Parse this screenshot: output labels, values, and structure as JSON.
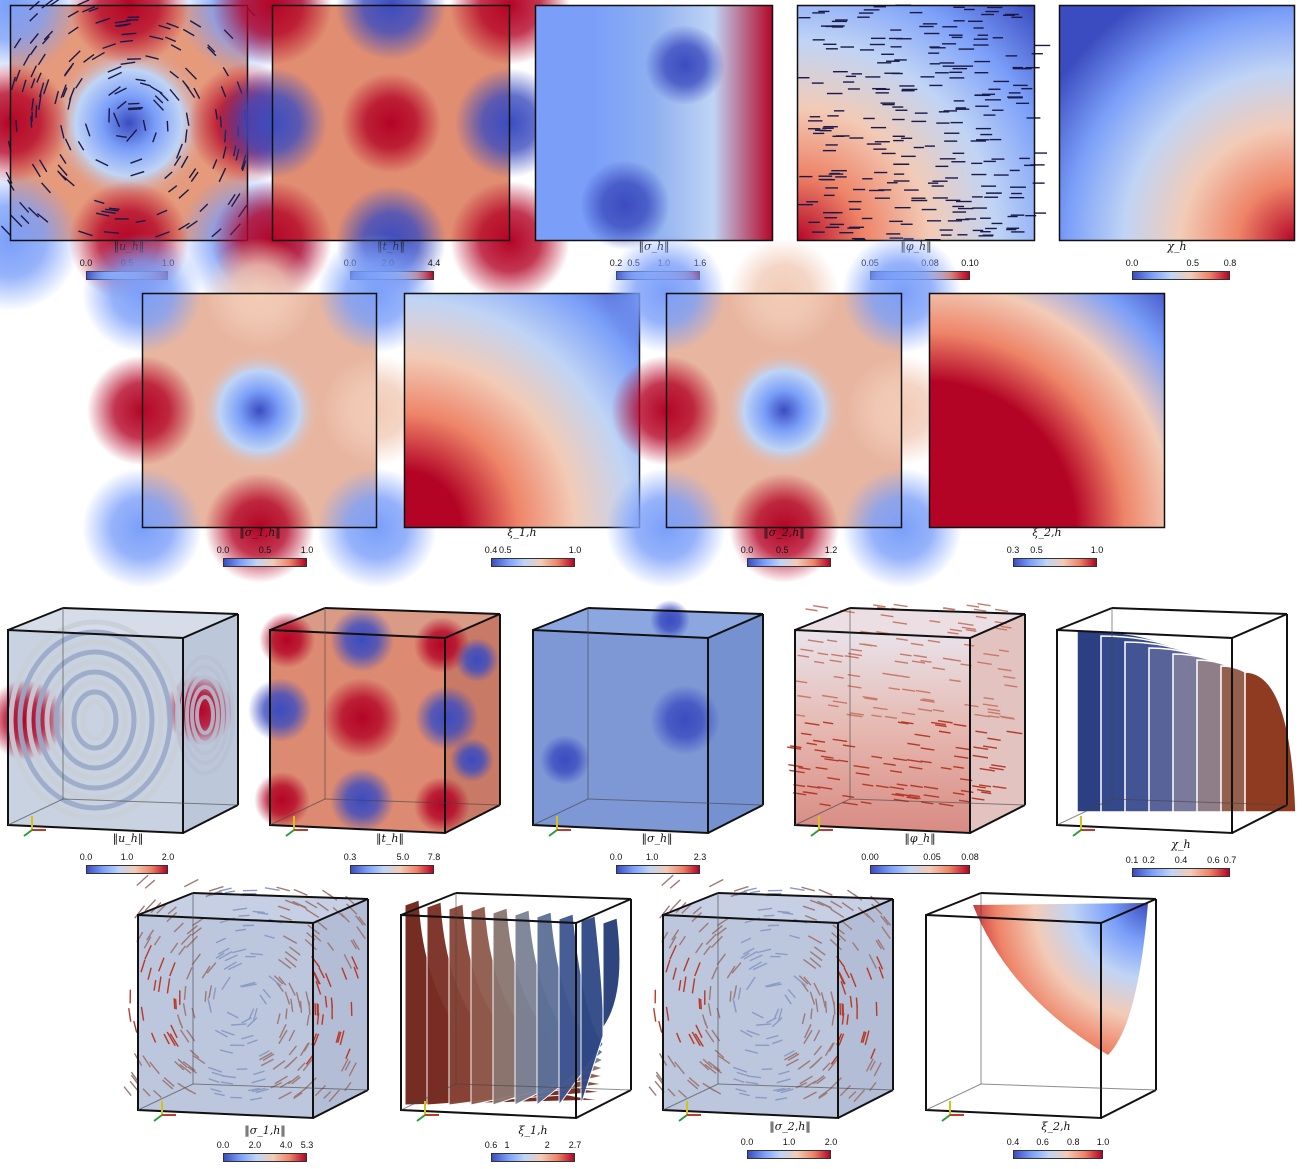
{
  "colormap": [
    "#3b4cc0",
    "#7b9ff9",
    "#c0d4f5",
    "#f2cbb7",
    "#ee8468",
    "#b40426"
  ],
  "row1": [
    {
      "label": "‖u_h‖",
      "ticks": [
        "0.0",
        "0.5",
        "1.0"
      ],
      "tick_pos": [
        0,
        0.5,
        1
      ],
      "type": "square-vortex-arrows"
    },
    {
      "label": "‖t_h‖",
      "ticks": [
        "0.0",
        "2.0",
        "4.4"
      ],
      "tick_pos": [
        0,
        0.45,
        1
      ],
      "type": "square-checker"
    },
    {
      "label": "‖σ_h‖",
      "ticks": [
        "0.2",
        "0.5",
        "1.0",
        "1.6"
      ],
      "tick_pos": [
        0,
        0.21,
        0.57,
        1
      ],
      "type": "square-low"
    },
    {
      "label": "‖φ_h‖",
      "ticks": [
        "0.05",
        "0.08",
        "0.10"
      ],
      "tick_pos": [
        0,
        0.6,
        1
      ],
      "type": "square-arrows-corner"
    },
    {
      "label": "χ_h",
      "ticks": [
        "0.0",
        "0.5",
        "0.8"
      ],
      "tick_pos": [
        0,
        0.62,
        1
      ],
      "type": "square-radial"
    }
  ],
  "row2": [
    {
      "label": "‖σ_1,h‖",
      "ticks": [
        "0.0",
        "0.5",
        "1.0"
      ],
      "tick_pos": [
        0,
        0.5,
        1
      ],
      "type": "square-checker-soft"
    },
    {
      "label": "ξ_1,h",
      "ticks": [
        "0.4",
        "0.5",
        "1.0"
      ],
      "tick_pos": [
        0,
        0.17,
        1
      ],
      "type": "square-hyper"
    },
    {
      "label": "‖σ_2,h‖",
      "ticks": [
        "0.0",
        "0.5",
        "1.2"
      ],
      "tick_pos": [
        0,
        0.42,
        1
      ],
      "type": "square-checker-soft"
    },
    {
      "label": "ξ_2,h",
      "ticks": [
        "0.3",
        "0.5",
        "1.0"
      ],
      "tick_pos": [
        0,
        0.28,
        1
      ],
      "type": "square-hyper-red"
    }
  ],
  "row3": [
    {
      "label": "‖u_h‖",
      "ticks": [
        "0.0",
        "1.0",
        "2.0"
      ],
      "tick_pos": [
        0,
        0.5,
        1
      ],
      "type": "cube-streams"
    },
    {
      "label": "‖t_h‖",
      "ticks": [
        "0.3",
        "5.0",
        "7.8"
      ],
      "tick_pos": [
        0,
        0.63,
        1
      ],
      "type": "cube-checker"
    },
    {
      "label": "‖σ_h‖",
      "ticks": [
        "0.0",
        "1.0",
        "2.3"
      ],
      "tick_pos": [
        0,
        0.43,
        1
      ],
      "type": "cube-blue"
    },
    {
      "label": "‖φ_h‖",
      "ticks": [
        "0.00",
        "0.05",
        "0.08"
      ],
      "tick_pos": [
        0,
        0.62,
        1
      ],
      "type": "cube-arrows-red"
    },
    {
      "label": "χ_h",
      "ticks": [
        "0.1",
        "0.2",
        "0.4",
        "0.6",
        "0.7"
      ],
      "tick_pos": [
        0,
        0.17,
        0.5,
        0.83,
        1
      ],
      "type": "cube-shells"
    }
  ],
  "row4": [
    {
      "label": "‖σ_1,h‖",
      "ticks": [
        "0.0",
        "2.0",
        "4.0",
        "5.3"
      ],
      "tick_pos": [
        0,
        0.38,
        0.75,
        1
      ],
      "type": "cube-arrows"
    },
    {
      "label": "ξ_1,h",
      "ticks": [
        "0.6",
        "1",
        "2",
        "2.7"
      ],
      "tick_pos": [
        0,
        0.19,
        0.67,
        1
      ],
      "type": "cube-sheets"
    },
    {
      "label": "‖σ_2,h‖",
      "ticks": [
        "0.0",
        "1.0",
        "2.0"
      ],
      "tick_pos": [
        0,
        0.5,
        1
      ],
      "type": "cube-arrows"
    },
    {
      "label": "ξ_2,h",
      "ticks": [
        "0.4",
        "0.6",
        "0.8",
        "1.0"
      ],
      "tick_pos": [
        0,
        0.33,
        0.67,
        1
      ],
      "type": "cube-sphere"
    }
  ]
}
